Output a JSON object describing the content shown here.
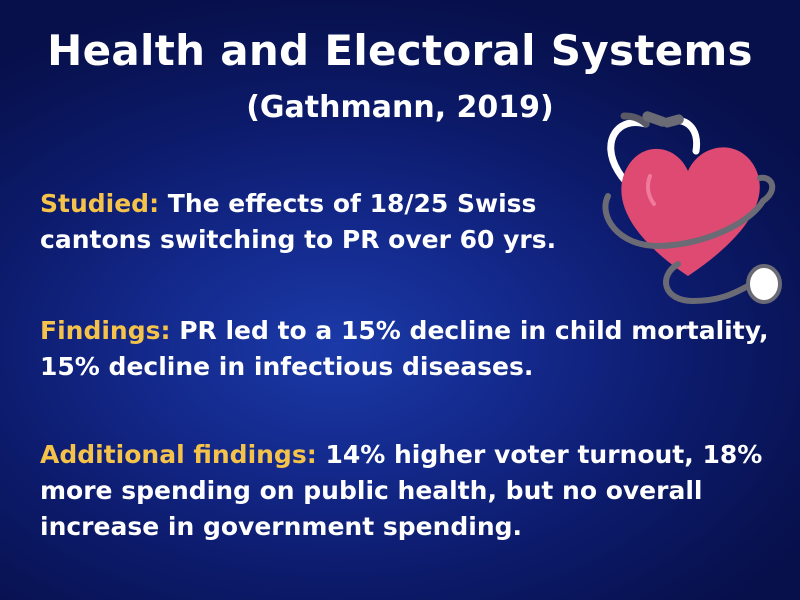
{
  "title": "Health and Electoral Systems",
  "subtitle": "(Gathmann, 2019)",
  "sections": [
    {
      "label": "Studied:",
      "text": "The effects of 18/25 Swiss cantons switching to PR over 60 yrs."
    },
    {
      "label": "Findings:",
      "text": "PR led to a 15% decline in child mortality, 15% decline in infectious diseases."
    },
    {
      "label": "Additional findings:",
      "text": "14% higher voter turnout, 18% more spending on public health, but no overall increase in government spending."
    }
  ],
  "colors": {
    "label": "#f5c24a",
    "heart": "#de4a72",
    "background": "#0c1a6a"
  },
  "icons": [
    "stethoscope-icon",
    "heart-icon"
  ]
}
